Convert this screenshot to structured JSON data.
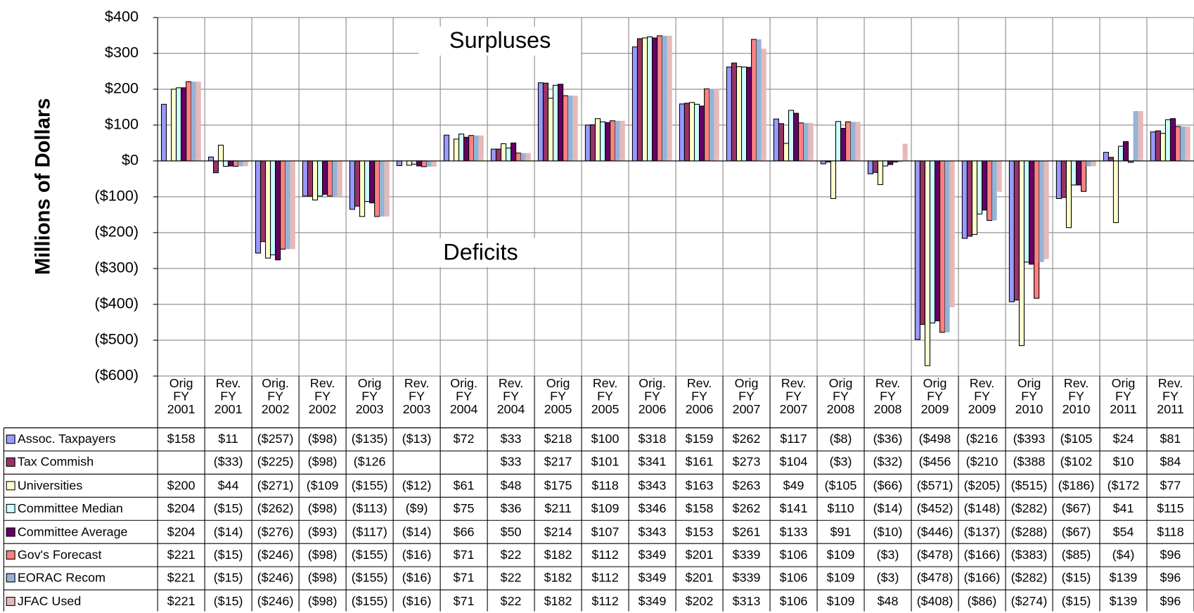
{
  "chart_data": {
    "type": "bar",
    "y_label": "Millions of Dollars",
    "annotations": [
      "Surpluses",
      "Deficits"
    ],
    "categories": [
      "Orig FY 2001",
      "Rev. FY 2001",
      "Orig. FY 2002",
      "Rev. FY 2002",
      "Orig FY 2003",
      "Rev. FY 2003",
      "Orig. FY 2004",
      "Rev. FY 2004",
      "Orig FY 2005",
      "Rev. FY 2005",
      "Orig. FY 2006",
      "Rev. FY 2006",
      "Orig FY 2007",
      "Rev. FY 2007",
      "Orig FY 2008",
      "Rev. FY 2008",
      "Orig FY 2009",
      "Rev. FY 2009",
      "Orig FY 2010",
      "Rev. FY 2010",
      "Orig FY 2011",
      "Rev. FY 2011"
    ],
    "ylim": [
      -600,
      400
    ],
    "yticks": [
      {
        "value": 400,
        "label": "$400"
      },
      {
        "value": 300,
        "label": "$300"
      },
      {
        "value": 200,
        "label": "$200"
      },
      {
        "value": 100,
        "label": "$100"
      },
      {
        "value": 0,
        "label": "$0"
      },
      {
        "value": -100,
        "label": "($100)"
      },
      {
        "value": -200,
        "label": "($200)"
      },
      {
        "value": -300,
        "label": "($300)"
      },
      {
        "value": -400,
        "label": "($400)"
      },
      {
        "value": -500,
        "label": "($500)"
      },
      {
        "value": -600,
        "label": "($600)"
      }
    ],
    "grid": true,
    "series": [
      {
        "name": "Assoc. Taxpayers",
        "color": "#9999ff",
        "border": true,
        "values": [
          158,
          11,
          -257,
          -98,
          -135,
          -13,
          72,
          33,
          218,
          100,
          318,
          159,
          262,
          117,
          -8,
          -36,
          -498,
          -216,
          -393,
          -105,
          24,
          81
        ],
        "value_labels": [
          "$158",
          "$11",
          "($257)",
          "($98)",
          "($135)",
          "($13)",
          "$72",
          "$33",
          "$218",
          "$100",
          "$318",
          "$159",
          "$262",
          "$117",
          "($8)",
          "($36)",
          "($498",
          "($216",
          "($393",
          "($105",
          "$24",
          "$81"
        ]
      },
      {
        "name": "Tax Commish",
        "color": "#993366",
        "border": true,
        "values": [
          null,
          -33,
          -225,
          -98,
          -126,
          null,
          null,
          33,
          217,
          101,
          341,
          161,
          273,
          104,
          -3,
          -32,
          -456,
          -210,
          -388,
          -102,
          10,
          84
        ],
        "value_labels": [
          null,
          "($33)",
          "($225)",
          "($98)",
          "($126",
          null,
          null,
          "$33",
          "$217",
          "$101",
          "$341",
          "$161",
          "$273",
          "$104",
          "($3)",
          "($32)",
          "($456",
          "($210",
          "($388",
          "($102",
          "$10",
          "$84"
        ]
      },
      {
        "name": "Universities",
        "color": "#ffffcc",
        "border": true,
        "values": [
          200,
          44,
          -271,
          -109,
          -155,
          -12,
          61,
          48,
          175,
          118,
          343,
          163,
          263,
          49,
          -105,
          -66,
          -571,
          -205,
          -515,
          -186,
          -172,
          77
        ],
        "value_labels": [
          "$200",
          "$44",
          "($271)",
          "($109",
          "($155)",
          "($12)",
          "$61",
          "$48",
          "$175",
          "$118",
          "$343",
          "$163",
          "$263",
          "$49",
          "($105",
          "($66)",
          "($571)",
          "($205)",
          "($515)",
          "($186)",
          "($172",
          "$77"
        ]
      },
      {
        "name": "Committee Median",
        "color": "#ccffff",
        "border": true,
        "values": [
          204,
          -15,
          -262,
          -98,
          -113,
          -9,
          75,
          36,
          211,
          109,
          346,
          158,
          262,
          141,
          110,
          -14,
          -452,
          -148,
          -282,
          -67,
          41,
          115
        ],
        "value_labels": [
          "$204",
          "($15)",
          "($262)",
          "($98)",
          "($113)",
          "($9)",
          "$75",
          "$36",
          "$211",
          "$109",
          "$346",
          "$158",
          "$262",
          "$141",
          "$110",
          "($14)",
          "($452)",
          "($148)",
          "($282)",
          "($67)",
          "$41",
          "$115"
        ]
      },
      {
        "name": "Committee Average",
        "color": "#660066",
        "border": true,
        "values": [
          204,
          -14,
          -276,
          -93,
          -117,
          -14,
          66,
          50,
          214,
          107,
          343,
          153,
          261,
          133,
          91,
          -10,
          -446,
          -137,
          -288,
          -67,
          54,
          118
        ],
        "value_labels": [
          "$204",
          "($14)",
          "($276)",
          "($93)",
          "($117)",
          "($14)",
          "$66",
          "$50",
          "$214",
          "$107",
          "$343",
          "$153",
          "$261",
          "$133",
          "$91",
          "($10)",
          "($446)",
          "($137)",
          "($288)",
          "($67)",
          "$54",
          "$118"
        ]
      },
      {
        "name": "Gov's Forecast",
        "color": "#ff8080",
        "border": true,
        "values": [
          221,
          -15,
          -246,
          -98,
          -155,
          -16,
          71,
          22,
          182,
          112,
          349,
          201,
          339,
          106,
          109,
          -3,
          -478,
          -166,
          -383,
          -85,
          -4,
          96
        ],
        "value_labels": [
          "$221",
          "($15)",
          "($246)",
          "($98)",
          "($155)",
          "($16)",
          "$71",
          "$22",
          "$182",
          "$112",
          "$349",
          "$201",
          "$339",
          "$106",
          "$109",
          "($3)",
          "($478)",
          "($166)",
          "($383)",
          "($85)",
          "($4)",
          "$96"
        ]
      },
      {
        "name": "EORAC Recom",
        "color": "#95b3d7",
        "border": false,
        "values": [
          221,
          -15,
          -246,
          -98,
          -155,
          -16,
          71,
          22,
          182,
          112,
          349,
          201,
          339,
          106,
          109,
          -3,
          -478,
          -166,
          -282,
          -15,
          139,
          96
        ],
        "value_labels": [
          "$221",
          "($15)",
          "($246)",
          "($98)",
          "($155)",
          "($16)",
          "$71",
          "$22",
          "$182",
          "$112",
          "$349",
          "$201",
          "$339",
          "$106",
          "$109",
          "($3)",
          "($478)",
          "($166)",
          "($282)",
          "($15)",
          "$139",
          "$96"
        ]
      },
      {
        "name": "JFAC Used",
        "color": "#e6b9b8",
        "border": false,
        "values": [
          221,
          -15,
          -246,
          -98,
          -155,
          -16,
          71,
          22,
          182,
          112,
          349,
          202,
          313,
          106,
          109,
          48,
          -408,
          -86,
          -274,
          -15,
          139,
          96
        ],
        "value_labels": [
          "$221",
          "($15)",
          "($246)",
          "($98)",
          "($155)",
          "($16)",
          "$71",
          "$22",
          "$182",
          "$112",
          "$349",
          "$202",
          "$313",
          "$106",
          "$109",
          "$48",
          "($408)",
          "($86)",
          "($274)",
          "($15)",
          "$139",
          "$96"
        ]
      }
    ]
  }
}
